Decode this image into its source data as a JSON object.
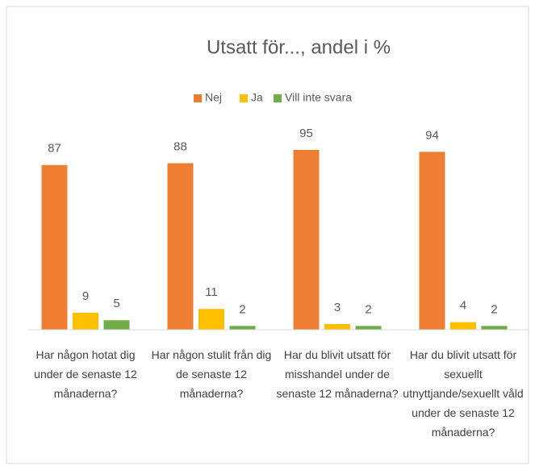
{
  "chart_data": {
    "type": "bar",
    "title": "Utsatt för..., andel i %",
    "categories": [
      "Har någon hotat dig under de senaste 12 månaderna?",
      "Har någon stulit från dig de senaste 12 månaderna?",
      "Har du blivit utsatt för misshandel under de senaste 12 månaderna?",
      "Har du blivit utsatt för sexuellt utnyttjande/sexuellt våld under de senaste 12 månaderna?"
    ],
    "series": [
      {
        "name": "Nej",
        "color": "#ED7D31",
        "values": [
          87,
          88,
          95,
          94
        ]
      },
      {
        "name": "Ja",
        "color": "#FFC000",
        "values": [
          9,
          11,
          3,
          4
        ]
      },
      {
        "name": "Vill inte svara",
        "color": "#70AD47",
        "values": [
          5,
          2,
          2,
          2
        ]
      }
    ],
    "legend": "top"
  }
}
